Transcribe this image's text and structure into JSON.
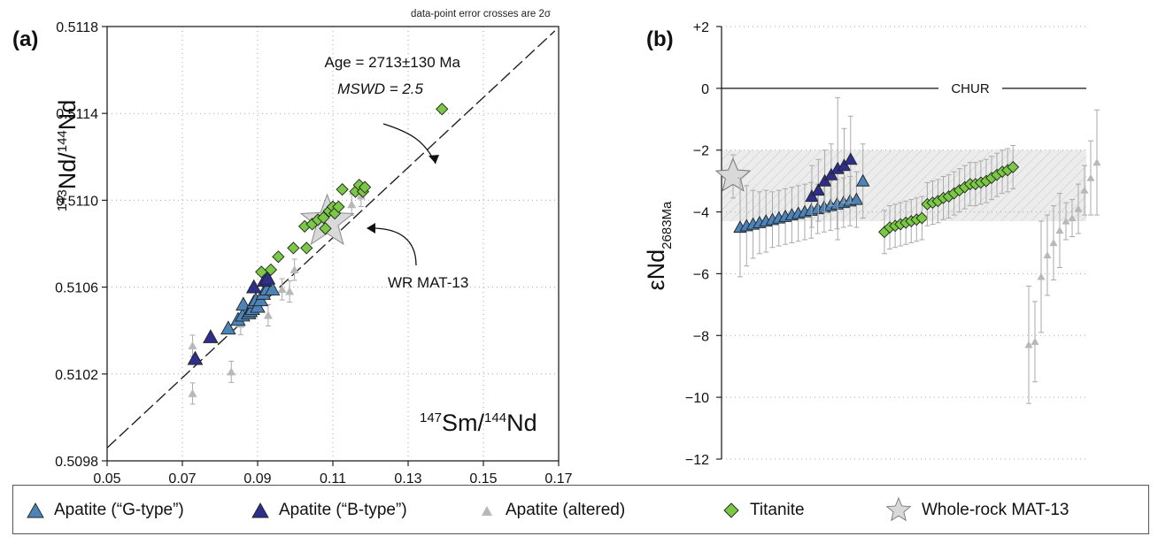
{
  "colors": {
    "g_type": "#4a84b8",
    "b_type": "#2e2f8c",
    "altered": "#b8b8b8",
    "titanite": "#7ac943",
    "whole_rock": "#d9d9d9",
    "envelope": "#e9e9e9"
  },
  "legend": {
    "g_type": "Apatite (“G-type”)",
    "b_type": "Apatite (“B-type”)",
    "altered": "Apatite (altered)",
    "titanite": "Titanite",
    "whole_rock": "Whole-rock MAT-13"
  },
  "chart_data": [
    {
      "type": "scatter",
      "panel_label": "(a)",
      "note": "data-point error crosses are 2σ",
      "xlabel": "147Sm/144Nd",
      "ylabel": "143Nd/144Nd",
      "xlim": [
        0.05,
        0.17
      ],
      "ylim": [
        0.5098,
        0.5118
      ],
      "x_ticks": [
        "0.05",
        "0.07",
        "0.09",
        "0.11",
        "0.13",
        "0.15",
        "0.17"
      ],
      "y_ticks": [
        "0.5098",
        "0.5102",
        "0.5106",
        "0.5110",
        "0.5114",
        "0.5118"
      ],
      "grid": true,
      "annotations": {
        "age": "Age = 2713±130 Ma",
        "mswd": "MSWD = 2.5",
        "wr": "WR MAT-13"
      },
      "isochron": {
        "x": [
          0.05,
          0.169
        ],
        "y": [
          0.50986,
          0.51178
        ]
      },
      "series": [
        {
          "name": "Apatite (“G-type”)",
          "points": [
            [
              0.0734,
              0.51027
            ],
            [
              0.0822,
              0.51041
            ],
            [
              0.0848,
              0.51045
            ],
            [
              0.086,
              0.51047
            ],
            [
              0.0862,
              0.51052
            ],
            [
              0.0876,
              0.51048
            ],
            [
              0.088,
              0.51049
            ],
            [
              0.0886,
              0.5105
            ],
            [
              0.089,
              0.51053
            ],
            [
              0.0895,
              0.51054
            ],
            [
              0.09,
              0.51051
            ],
            [
              0.0908,
              0.51054
            ],
            [
              0.0915,
              0.51057
            ],
            [
              0.0925,
              0.51059
            ],
            [
              0.0939,
              0.51059
            ]
          ]
        },
        {
          "name": "Apatite (“B-type”)",
          "points": [
            [
              0.0734,
              0.51027
            ],
            [
              0.0775,
              0.51037
            ],
            [
              0.089,
              0.5106
            ],
            [
              0.0918,
              0.51063
            ],
            [
              0.0927,
              0.51064
            ]
          ]
        },
        {
          "name": "Apatite (altered)",
          "points": [
            [
              0.0727,
              0.51033
            ],
            [
              0.0727,
              0.51011
            ],
            [
              0.083,
              0.51021
            ],
            [
              0.0855,
              0.51043
            ],
            [
              0.0928,
              0.51047
            ],
            [
              0.0965,
              0.51059
            ],
            [
              0.0985,
              0.51058
            ],
            [
              0.0998,
              0.51068
            ],
            [
              0.115,
              0.51098
            ],
            [
              0.1175,
              0.51102
            ]
          ]
        },
        {
          "name": "Titanite",
          "points": [
            [
              0.091,
              0.51067
            ],
            [
              0.0935,
              0.51068
            ],
            [
              0.0955,
              0.51074
            ],
            [
              0.0995,
              0.51078
            ],
            [
              0.103,
              0.51078
            ],
            [
              0.1025,
              0.51088
            ],
            [
              0.1045,
              0.51089
            ],
            [
              0.106,
              0.51091
            ],
            [
              0.1075,
              0.51092
            ],
            [
              0.108,
              0.51087
            ],
            [
              0.109,
              0.51095
            ],
            [
              0.11,
              0.51097
            ],
            [
              0.1105,
              0.51094
            ],
            [
              0.1115,
              0.51097
            ],
            [
              0.1125,
              0.51105
            ],
            [
              0.116,
              0.51104
            ],
            [
              0.117,
              0.51107
            ],
            [
              0.118,
              0.51104
            ],
            [
              0.1185,
              0.51106
            ],
            [
              0.139,
              0.51142
            ]
          ]
        },
        {
          "name": "Whole-rock MAT-13",
          "points": [
            [
              0.1085,
              0.5109
            ]
          ]
        }
      ]
    },
    {
      "type": "scatter",
      "panel_label": "(b)",
      "ylabel": "εNd2683Ma",
      "ylim": [
        -12,
        2
      ],
      "y_ticks": [
        "+2",
        "0",
        "−2",
        "−4",
        "−6",
        "−8",
        "−10",
        "−12"
      ],
      "reference_line": {
        "label": "CHUR",
        "y": 0
      },
      "envelope": [
        -4.3,
        -2.0
      ],
      "grid": true,
      "series": [
        {
          "name": "Apatite (“G-type”)",
          "values": [
            -4.5,
            -4.45,
            -4.4,
            -4.35,
            -4.3,
            -4.25,
            -4.2,
            -4.15,
            -4.1,
            -4.05,
            -4.0,
            -3.95,
            -3.9,
            -3.85,
            -3.8,
            -3.75,
            -3.7,
            -3.65,
            -3.6,
            -3.0
          ],
          "errors": [
            1.6,
            1.3,
            1.1,
            1.0,
            1.0,
            0.9,
            0.9,
            0.9,
            0.9,
            0.9,
            0.9,
            0.9,
            0.8,
            0.8,
            0.8,
            0.8,
            0.8,
            0.8,
            0.9,
            1.2
          ]
        },
        {
          "name": "Apatite (“B-type”)",
          "values": [
            -3.5,
            -3.3,
            -3.0,
            -2.8,
            -2.6,
            -2.5,
            -2.3
          ],
          "errors": [
            1.0,
            1.0,
            1.0,
            1.0,
            2.3,
            1.2,
            1.4
          ]
        },
        {
          "name": "Titanite",
          "values": [
            -4.65,
            -4.5,
            -4.45,
            -4.4,
            -4.35,
            -4.3,
            -4.25,
            -4.2,
            -3.75,
            -3.7,
            -3.65,
            -3.55,
            -3.5,
            -3.4,
            -3.3,
            -3.2,
            -3.1,
            -3.1,
            -3.05,
            -3.0,
            -2.9,
            -2.8,
            -2.7,
            -2.65,
            -2.55
          ],
          "errors": [
            0.7,
            0.7,
            0.7,
            0.7,
            0.7,
            0.7,
            0.7,
            0.7,
            0.7,
            0.7,
            0.7,
            0.7,
            0.7,
            0.7,
            0.7,
            0.7,
            0.7,
            0.7,
            0.7,
            0.7,
            0.7,
            0.7,
            0.7,
            0.7,
            0.7
          ]
        },
        {
          "name": "Apatite (altered)",
          "values": [
            -8.3,
            -8.2,
            -6.1,
            -5.4,
            -5.0,
            -4.6,
            -4.3,
            -4.2,
            -3.9,
            -3.3,
            -2.9,
            -2.4
          ],
          "errors": [
            1.9,
            1.3,
            1.8,
            1.3,
            1.2,
            1.2,
            0.6,
            0.6,
            0.8,
            0.8,
            1.2,
            1.7
          ]
        },
        {
          "name": "Whole-rock MAT-13",
          "values": [
            -2.85
          ],
          "errors": [
            0.7
          ]
        }
      ]
    }
  ]
}
